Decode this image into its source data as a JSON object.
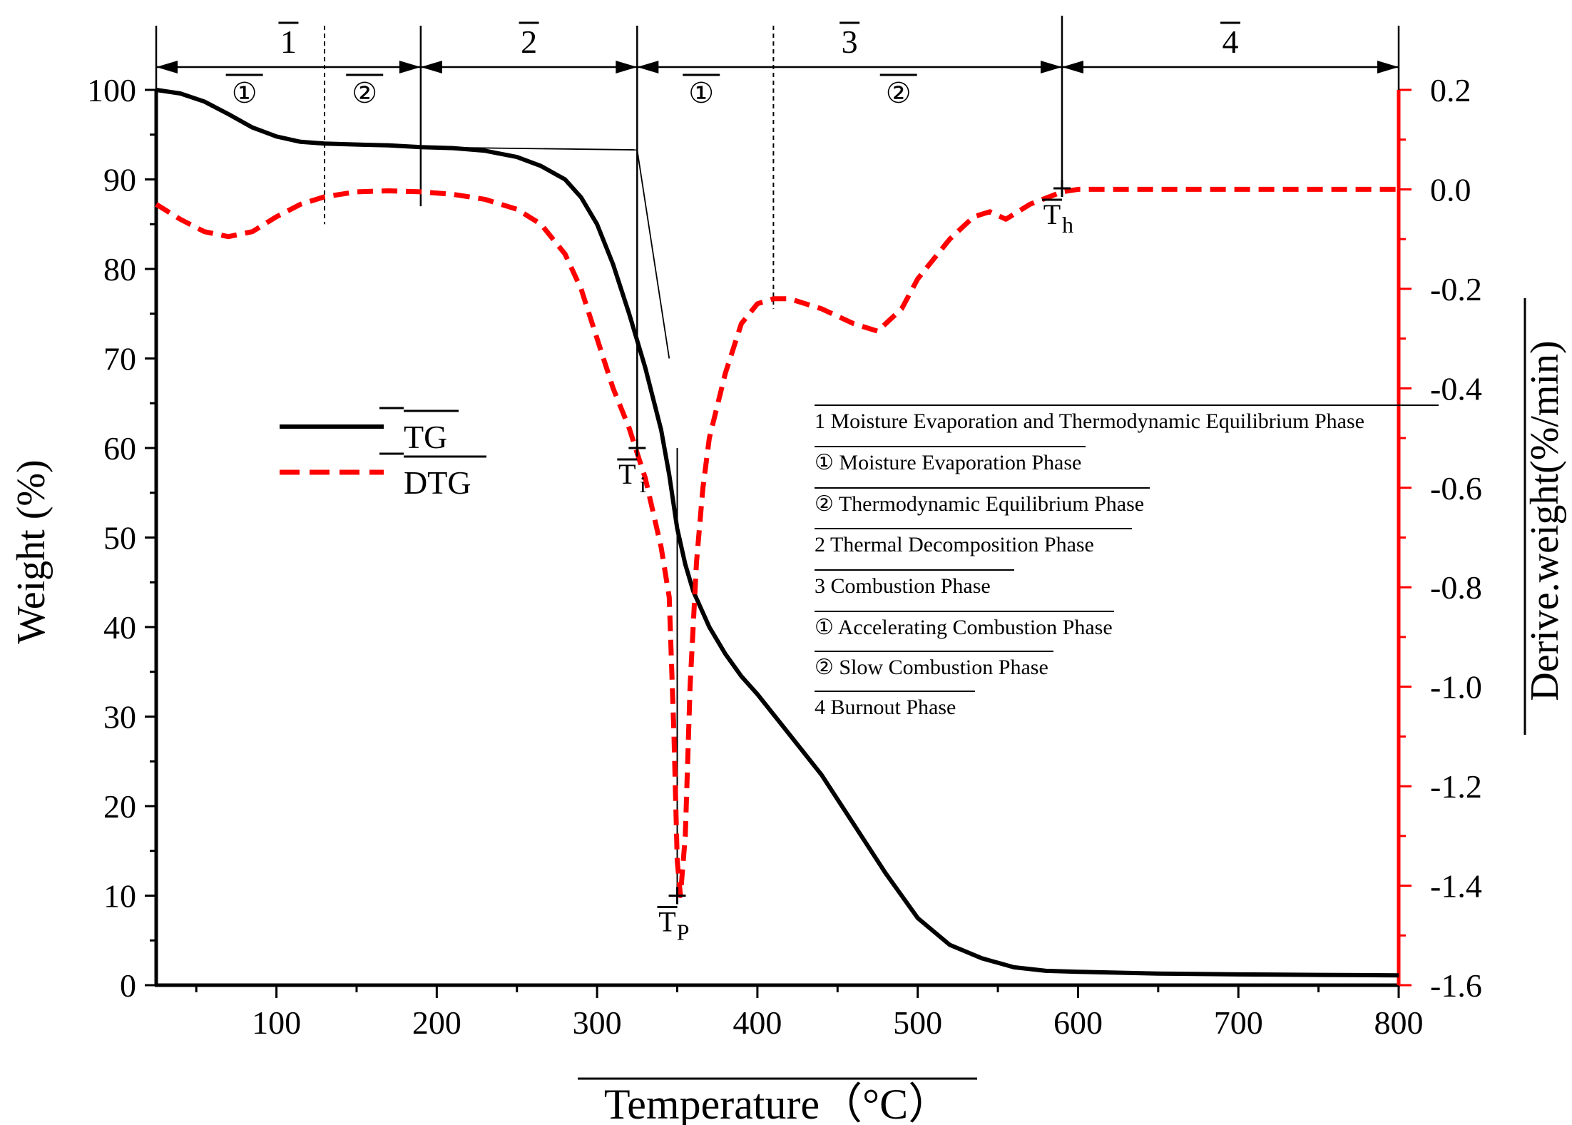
{
  "chart_data": {
    "type": "line",
    "xlabel": "Temperature（°C）",
    "ylabel_left": "Weight (%)",
    "ylabel_right": "Derive.weight(%/min)",
    "xlim": [
      25,
      800
    ],
    "ylim_left": [
      0,
      100
    ],
    "ylim_right": [
      -1.6,
      0.2
    ],
    "x_ticks": [
      100,
      200,
      300,
      400,
      500,
      600,
      700,
      800
    ],
    "y_left_ticks": [
      0,
      10,
      20,
      30,
      40,
      50,
      60,
      70,
      80,
      90,
      100
    ],
    "y_right_ticks": [
      -1.6,
      -1.4,
      -1.2,
      -1.0,
      -0.8,
      -0.6,
      -0.4,
      -0.2,
      0.0,
      0.2
    ],
    "y_right_tick_labels": [
      "-1.6",
      "-1.4",
      "-1.2",
      "-1.0",
      "-0.8",
      "-0.6",
      "-0.4",
      "-0.2",
      "0.0",
      "0.2"
    ],
    "series": [
      {
        "name": "TG",
        "axis": "left",
        "color": "#000000",
        "style": "solid",
        "x": [
          25,
          40,
          55,
          70,
          85,
          100,
          115,
          130,
          150,
          170,
          190,
          210,
          230,
          250,
          265,
          280,
          290,
          300,
          310,
          320,
          330,
          340,
          345,
          350,
          355,
          360,
          370,
          380,
          390,
          400,
          420,
          440,
          460,
          480,
          500,
          520,
          540,
          560,
          580,
          600,
          650,
          700,
          750,
          800
        ],
        "y": [
          100,
          99.6,
          98.7,
          97.3,
          95.8,
          94.8,
          94.2,
          94.0,
          93.9,
          93.8,
          93.6,
          93.5,
          93.2,
          92.5,
          91.5,
          90.0,
          88.0,
          85.0,
          80.5,
          75.0,
          69.0,
          62.0,
          57.0,
          51.0,
          47.0,
          44.0,
          40.0,
          37.0,
          34.5,
          32.5,
          28.0,
          23.5,
          18.0,
          12.5,
          7.5,
          4.5,
          3.0,
          2.0,
          1.6,
          1.5,
          1.3,
          1.2,
          1.15,
          1.1
        ]
      },
      {
        "name": "DTG",
        "axis": "right",
        "color": "#ff0000",
        "style": "dashed",
        "x": [
          25,
          40,
          55,
          70,
          85,
          100,
          115,
          130,
          150,
          170,
          190,
          210,
          230,
          250,
          265,
          280,
          290,
          300,
          310,
          320,
          325,
          330,
          335,
          340,
          345,
          348,
          350,
          352,
          355,
          358,
          362,
          366,
          370,
          380,
          390,
          400,
          410,
          420,
          440,
          460,
          475,
          490,
          500,
          520,
          535,
          545,
          555,
          570,
          590,
          600,
          650,
          700,
          750,
          800
        ],
        "y": [
          -0.03,
          -0.06,
          -0.085,
          -0.095,
          -0.085,
          -0.055,
          -0.03,
          -0.015,
          -0.005,
          -0.003,
          -0.005,
          -0.01,
          -0.02,
          -0.04,
          -0.07,
          -0.13,
          -0.2,
          -0.3,
          -0.4,
          -0.48,
          -0.53,
          -0.58,
          -0.65,
          -0.72,
          -0.82,
          -1.1,
          -1.35,
          -1.42,
          -1.3,
          -1.0,
          -0.75,
          -0.6,
          -0.5,
          -0.37,
          -0.27,
          -0.23,
          -0.22,
          -0.22,
          -0.24,
          -0.27,
          -0.285,
          -0.24,
          -0.18,
          -0.1,
          -0.055,
          -0.045,
          -0.06,
          -0.03,
          -0.005,
          0.0,
          0.0,
          0.0,
          0.0,
          0.0
        ]
      }
    ],
    "phases": [
      {
        "label": "1",
        "x_start": 25,
        "x_end": 190
      },
      {
        "label": "2",
        "x_start": 190,
        "x_end": 325
      },
      {
        "label": "3",
        "x_start": 325,
        "x_end": 590
      },
      {
        "label": "4",
        "x_start": 590,
        "x_end": 800
      }
    ],
    "subphases": [
      {
        "label": "①",
        "x": 80
      },
      {
        "label": "②",
        "x": 155
      },
      {
        "label": "①",
        "x": 365
      },
      {
        "label": "②",
        "x": 488
      }
    ],
    "subphase_dividers_x": [
      130,
      410
    ],
    "phase_dividers_x": [
      190,
      325,
      590
    ],
    "points": [
      {
        "label": "T",
        "sub": "i",
        "x": 325,
        "y": 60,
        "axis": "left"
      },
      {
        "label": "T",
        "sub": "P",
        "x": 350,
        "y": 10,
        "axis": "left"
      },
      {
        "label": "T",
        "sub": "h",
        "x": 590,
        "y": 89,
        "axis": "left"
      }
    ],
    "legend": {
      "placement": "center-left",
      "entries": [
        "TG",
        "DTG"
      ]
    },
    "annotation_list": [
      "1 Moisture Evaporation and Thermodynamic Equilibrium Phase",
      "① Moisture Evaporation Phase",
      "② Thermodynamic Equilibrium Phase",
      "2 Thermal Decomposition Phase",
      "3 Combustion Phase",
      "① Accelerating Combustion Phase",
      "② Slow Combustion Phase",
      "4 Burnout Phase"
    ]
  }
}
